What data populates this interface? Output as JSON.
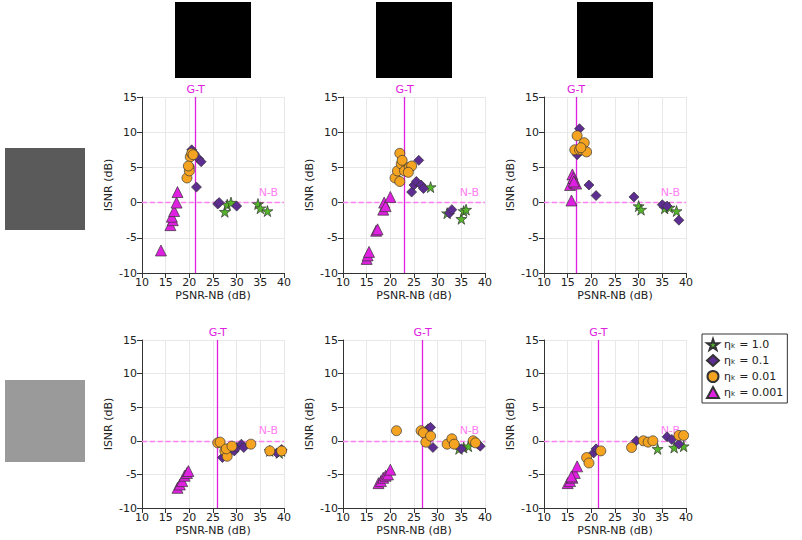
{
  "chart_data": [
    {
      "type": "scatter",
      "x_label": "PSNR-NB (dB)",
      "y_label": "ISNR (dB)",
      "xlim": [
        10,
        40
      ],
      "xticks": [
        10,
        15,
        20,
        25,
        30,
        35,
        40
      ],
      "ylim": [
        -10,
        15
      ],
      "yticks": [
        -10,
        -5,
        0,
        5,
        10,
        15
      ],
      "grid": true,
      "annotations": [
        {
          "text": "G-T",
          "x": 21.3,
          "color": "#e020e0"
        },
        {
          "text": "N-B",
          "y": 0,
          "color": "#ff80f0"
        }
      ],
      "series": [
        {
          "name": "ηₖ = 1.0",
          "color": "#55b52a",
          "marker": "star",
          "values": [
            [
              27.5,
              -1.3
            ],
            [
              28,
              -0.3
            ],
            [
              28.8,
              0
            ],
            [
              34.5,
              -0.2
            ],
            [
              35,
              -0.8
            ],
            [
              36.5,
              -1.2
            ]
          ]
        },
        {
          "name": "ηₖ = 0.1",
          "color": "#5e2d91",
          "marker": "diamond",
          "values": [
            [
              20.5,
              7.5
            ],
            [
              21,
              7
            ],
            [
              21.5,
              2.2
            ],
            [
              22,
              6.2
            ],
            [
              22.5,
              5.8
            ],
            [
              26,
              -0.2
            ],
            [
              30,
              -0.5
            ],
            [
              26.3,
              0
            ]
          ]
        },
        {
          "name": "ηₖ = 0.01",
          "color": "#f5a422",
          "marker": "circle",
          "values": [
            [
              19.5,
              3.5
            ],
            [
              20,
              5
            ],
            [
              20.2,
              6.5
            ],
            [
              20.5,
              7
            ],
            [
              20,
              4.5
            ],
            [
              20.8,
              6.8
            ],
            [
              19.8,
              5.2
            ]
          ]
        },
        {
          "name": "ηₖ = 0.001",
          "color": "#e020e0",
          "marker": "triangle",
          "values": [
            [
              14,
              -6.8
            ],
            [
              16,
              -3.2
            ],
            [
              16.5,
              -2.5
            ],
            [
              16.3,
              -2
            ],
            [
              16.8,
              -1.2
            ],
            [
              17.3,
              0
            ],
            [
              17.5,
              1.5
            ]
          ]
        }
      ]
    },
    {
      "type": "scatter",
      "x_label": "PSNR-NB (dB)",
      "y_label": "ISNR (dB)",
      "xlim": [
        10,
        40
      ],
      "xticks": [
        10,
        15,
        20,
        25,
        30,
        35,
        40
      ],
      "ylim": [
        -10,
        15
      ],
      "yticks": [
        -10,
        -5,
        0,
        5,
        10,
        15
      ],
      "grid": true,
      "annotations": [
        {
          "text": "G-T",
          "x": 23,
          "color": "#e020e0"
        },
        {
          "text": "N-B",
          "y": 0,
          "color": "#ff80f0"
        }
      ],
      "series": [
        {
          "name": "ηₖ = 1.0",
          "color": "#55b52a",
          "marker": "star",
          "values": [
            [
              28.5,
              2.2
            ],
            [
              32,
              -1.5
            ],
            [
              35,
              -2.3
            ],
            [
              35.5,
              -1.2
            ],
            [
              36,
              -1
            ]
          ]
        },
        {
          "name": "ηₖ = 0.1",
          "color": "#5e2d91",
          "marker": "diamond",
          "values": [
            [
              24.5,
              1.5
            ],
            [
              25,
              2.5
            ],
            [
              25.5,
              3
            ],
            [
              26,
              6
            ],
            [
              26.5,
              2.5
            ],
            [
              27,
              2
            ],
            [
              32.5,
              -1.5
            ],
            [
              33,
              -1
            ]
          ]
        },
        {
          "name": "ηₖ = 0.01",
          "color": "#f5a422",
          "marker": "circle",
          "values": [
            [
              21,
              3.5
            ],
            [
              21.5,
              4.5
            ],
            [
              22,
              3
            ],
            [
              22.3,
              5.5
            ],
            [
              22,
              7
            ],
            [
              22.5,
              6
            ],
            [
              23,
              4.5
            ],
            [
              24,
              5
            ],
            [
              24.5,
              5.2
            ],
            [
              23.8,
              4.3
            ]
          ]
        },
        {
          "name": "ηₖ = 0.001",
          "color": "#e020e0",
          "marker": "triangle",
          "values": [
            [
              15,
              -8
            ],
            [
              15.2,
              -7.5
            ],
            [
              15.5,
              -7
            ],
            [
              17,
              -4
            ],
            [
              17.3,
              -3.8
            ],
            [
              18.5,
              -1
            ],
            [
              18.7,
              0
            ],
            [
              19,
              -0.5
            ],
            [
              20,
              0.8
            ]
          ]
        }
      ]
    },
    {
      "type": "scatter",
      "x_label": "PSNR-NB (dB)",
      "y_label": "ISNR (dB)",
      "xlim": [
        10,
        40
      ],
      "xticks": [
        10,
        15,
        20,
        25,
        30,
        35,
        40
      ],
      "ylim": [
        -10,
        15
      ],
      "yticks": [
        -10,
        -5,
        0,
        5,
        10,
        15
      ],
      "grid": true,
      "annotations": [
        {
          "text": "G-T",
          "x": 16.8,
          "color": "#e020e0"
        },
        {
          "text": "N-B",
          "y": 0,
          "color": "#ff80f0"
        }
      ],
      "series": [
        {
          "name": "ηₖ = 1.0",
          "color": "#55b52a",
          "marker": "star",
          "values": [
            [
              30,
              -0.5
            ],
            [
              30.5,
              -1
            ],
            [
              35.5,
              -0.8
            ],
            [
              36.5,
              -0.7
            ],
            [
              38,
              -1.2
            ]
          ]
        },
        {
          "name": "ηₖ = 0.1",
          "color": "#5e2d91",
          "marker": "diamond",
          "values": [
            [
              17,
              6.8
            ],
            [
              17.5,
              10.5
            ],
            [
              19.5,
              2.5
            ],
            [
              21,
              1
            ],
            [
              29,
              0.8
            ],
            [
              35,
              -0.3
            ],
            [
              36,
              -0.5
            ],
            [
              38.5,
              -2.5
            ]
          ]
        },
        {
          "name": "ηₖ = 0.01",
          "color": "#f5a422",
          "marker": "circle",
          "values": [
            [
              16.5,
              7.5
            ],
            [
              17,
              9.5
            ],
            [
              17.5,
              7.5
            ],
            [
              18,
              7.5
            ],
            [
              18.5,
              8.5
            ],
            [
              19,
              7.2
            ],
            [
              17.8,
              7.8
            ]
          ]
        },
        {
          "name": "ηₖ = 0.001",
          "color": "#e020e0",
          "marker": "triangle",
          "values": [
            [
              15.5,
              2.5
            ],
            [
              15.8,
              0.3
            ],
            [
              16,
              4
            ],
            [
              16.2,
              3.5
            ],
            [
              16.5,
              2.8
            ],
            [
              16.8,
              2.7
            ],
            [
              16.3,
              3
            ]
          ]
        }
      ]
    },
    {
      "type": "scatter",
      "x_label": "PSNR-NB (dB)",
      "y_label": "ISNR (dB)",
      "xlim": [
        10,
        40
      ],
      "xticks": [
        10,
        15,
        20,
        25,
        30,
        35,
        40
      ],
      "ylim": [
        -10,
        15
      ],
      "yticks": [
        -10,
        -5,
        0,
        5,
        10,
        15
      ],
      "grid": true,
      "annotations": [
        {
          "text": "G-T",
          "x": 26,
          "color": "#e020e0"
        },
        {
          "text": "N-B",
          "y": 0,
          "color": "#ff80f0"
        }
      ],
      "series": [
        {
          "name": "ηₖ = 1.0",
          "color": "#55b52a",
          "marker": "star",
          "values": [
            [
              37,
              -1.5
            ],
            [
              39,
              -1.8
            ],
            [
              39.5,
              -1.5
            ]
          ]
        },
        {
          "name": "ηₖ = 0.1",
          "color": "#5e2d91",
          "marker": "diamond",
          "values": [
            [
              27,
              -2.5
            ],
            [
              28,
              -2
            ],
            [
              29.5,
              -1.5
            ],
            [
              30,
              -1
            ],
            [
              31,
              -0.5
            ],
            [
              31.5,
              -1
            ],
            [
              38.5,
              -1.8
            ],
            [
              39.5,
              -1.3
            ]
          ]
        },
        {
          "name": "ηₖ = 0.01",
          "color": "#f5a422",
          "marker": "circle",
          "values": [
            [
              26,
              -0.3
            ],
            [
              26.5,
              -0.2
            ],
            [
              27.5,
              -1.5
            ],
            [
              28,
              -2.3
            ],
            [
              27.8,
              -1.2
            ],
            [
              29,
              -0.8
            ],
            [
              33,
              -0.5
            ],
            [
              37,
              -1.5
            ],
            [
              39.5,
              -1.5
            ]
          ]
        },
        {
          "name": "ηₖ = 0.001",
          "color": "#e020e0",
          "marker": "triangle",
          "values": [
            [
              17.5,
              -7
            ],
            [
              18,
              -6.5
            ],
            [
              18.5,
              -6
            ],
            [
              19,
              -5.2
            ],
            [
              19.5,
              -4.8
            ],
            [
              19.8,
              -4.5
            ]
          ]
        }
      ]
    },
    {
      "type": "scatter",
      "x_label": "PSNR-NB (dB)",
      "y_label": "ISNR (dB)",
      "xlim": [
        10,
        40
      ],
      "xticks": [
        10,
        15,
        20,
        25,
        30,
        35,
        40
      ],
      "ylim": [
        -10,
        15
      ],
      "yticks": [
        -10,
        -5,
        0,
        5,
        10,
        15
      ],
      "grid": true,
      "annotations": [
        {
          "text": "G-T",
          "x": 26.8,
          "color": "#e020e0"
        },
        {
          "text": "N-B",
          "y": 0,
          "color": "#ff80f0"
        }
      ],
      "series": [
        {
          "name": "ηₖ = 1.0",
          "color": "#55b52a",
          "marker": "star",
          "values": [
            [
              34.5,
              -1.2
            ],
            [
              35.5,
              -1
            ],
            [
              36.5,
              -0.8
            ]
          ]
        },
        {
          "name": "ηₖ = 0.1",
          "color": "#5e2d91",
          "marker": "diamond",
          "values": [
            [
              28,
              1.8
            ],
            [
              28.5,
              2
            ],
            [
              29,
              -1
            ],
            [
              35,
              -1.2
            ],
            [
              38.5,
              -0.5
            ],
            [
              39,
              -0.8
            ]
          ]
        },
        {
          "name": "ηₖ = 0.01",
          "color": "#f5a422",
          "marker": "circle",
          "values": [
            [
              21.3,
              1.5
            ],
            [
              26.5,
              1.5
            ],
            [
              27,
              1.2
            ],
            [
              27.5,
              -0.2
            ],
            [
              28.5,
              0.7
            ],
            [
              32,
              -0.5
            ],
            [
              33,
              0.3
            ],
            [
              33.5,
              -0.5
            ],
            [
              37.5,
              0
            ],
            [
              38,
              -0.3
            ]
          ]
        },
        {
          "name": "ηₖ = 0.001",
          "color": "#e020e0",
          "marker": "triangle",
          "values": [
            [
              17.5,
              -6.3
            ],
            [
              18,
              -6
            ],
            [
              18.5,
              -5.5
            ],
            [
              19,
              -5.2
            ],
            [
              19.5,
              -5
            ],
            [
              20,
              -4.3
            ]
          ]
        }
      ]
    },
    {
      "type": "scatter",
      "x_label": "PSNR-NB (dB)",
      "y_label": "ISNR (dB)",
      "xlim": [
        10,
        40
      ],
      "xticks": [
        10,
        15,
        20,
        25,
        30,
        35,
        40
      ],
      "ylim": [
        -10,
        15
      ],
      "yticks": [
        -10,
        -5,
        0,
        5,
        10,
        15
      ],
      "grid": true,
      "legend": "right",
      "annotations": [
        {
          "text": "G-T",
          "x": 21.5,
          "color": "#e020e0"
        },
        {
          "text": "N-B",
          "y": 0,
          "color": "#ff80f0"
        }
      ],
      "series": [
        {
          "name": "ηₖ = 1.0",
          "color": "#55b52a",
          "marker": "star",
          "values": [
            [
              34,
              -1.2
            ],
            [
              37.5,
              -1
            ],
            [
              39.5,
              -0.8
            ]
          ]
        },
        {
          "name": "ηₖ = 0.1",
          "color": "#5e2d91",
          "marker": "diamond",
          "values": [
            [
              20.5,
              -1.8
            ],
            [
              21,
              -1.2
            ],
            [
              29.5,
              0
            ],
            [
              36,
              0.6
            ],
            [
              37,
              0.2
            ],
            [
              38.5,
              -0.5
            ]
          ]
        },
        {
          "name": "ηₖ = 0.01",
          "color": "#f5a422",
          "marker": "circle",
          "values": [
            [
              19,
              -2.5
            ],
            [
              19.5,
              -3.3
            ],
            [
              22,
              -1.5
            ],
            [
              28.5,
              -1
            ],
            [
              31,
              0
            ],
            [
              32,
              -0.2
            ],
            [
              33,
              0
            ],
            [
              38.5,
              0.8
            ],
            [
              39.5,
              0.8
            ]
          ]
        },
        {
          "name": "ηₖ = 0.001",
          "color": "#e020e0",
          "marker": "triangle",
          "values": [
            [
              15,
              -6.3
            ],
            [
              15.5,
              -6
            ],
            [
              16,
              -5.5
            ],
            [
              16.5,
              -4.8
            ],
            [
              17,
              -3.8
            ],
            [
              15.8,
              -5.3
            ]
          ]
        }
      ]
    }
  ]
}
